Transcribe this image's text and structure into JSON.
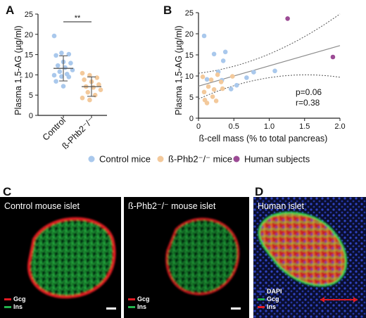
{
  "colors": {
    "control": "#a9c8ec",
    "knockout": "#f3c99b",
    "human": "#9c4b95",
    "axis": "#222222",
    "fit_line": "#8c8c8c",
    "gcg": "#e21b23",
    "ins": "#22b24c",
    "dapi": "#2838a8"
  },
  "panels": {
    "A": {
      "letter": "A"
    },
    "B": {
      "letter": "B"
    },
    "C": {
      "letter": "C",
      "left_title": "Control mouse islet",
      "right_title": "ß-Phb2⁻/⁻ mouse islet",
      "stain_gcg": "Gcg",
      "stain_ins": "Ins"
    },
    "D": {
      "letter": "D",
      "title": "Human islet",
      "stain_dapi": "DAPI",
      "stain_gcg": "Gcg",
      "stain_ins": "Ins"
    }
  },
  "legend": {
    "items": [
      {
        "label": "Control mice",
        "color_key": "control"
      },
      {
        "label": "ß-Phb2⁻/⁻ mice",
        "color_key": "knockout"
      },
      {
        "label": "Human subjects",
        "color_key": "human"
      }
    ]
  },
  "chart_data": [
    {
      "type": "scatter",
      "panel": "A",
      "ylabel": "Plasma 1,5-AG (µg/ml)",
      "ylim": [
        0,
        25
      ],
      "yticks": [
        0,
        5,
        10,
        15,
        20,
        25
      ],
      "categories": [
        "Control",
        "ß-Phb2⁻/⁻"
      ],
      "significance": "**",
      "series": [
        {
          "name": "Control",
          "color_key": "control",
          "mean": 11.6,
          "sd": 3.1,
          "values": [
            19.6,
            15.4,
            15.1,
            14.8,
            13.2,
            12.9,
            12.3,
            11.8,
            11.2,
            10.8,
            10.2,
            9.9,
            9.6,
            9.5,
            8.4,
            7.2
          ]
        },
        {
          "name": "ß-Phb2⁻/⁻",
          "color_key": "knockout",
          "mean": 7.1,
          "sd": 2.4,
          "values": [
            10.4,
            9.9,
            9.3,
            8.8,
            8.3,
            7.6,
            7.1,
            6.9,
            6.3,
            5.7,
            5.0,
            4.3,
            3.8
          ]
        }
      ]
    },
    {
      "type": "scatter",
      "panel": "B",
      "xlabel": "ß-cell mass (% to total pancreas)",
      "ylabel": "Plasma 1,5-AG (µg/ml)",
      "xlim": [
        0,
        2.0
      ],
      "ylim": [
        0,
        25
      ],
      "xticks": [
        "0",
        "0.5",
        "1.0",
        "1.5",
        "2.0"
      ],
      "yticks": [
        0,
        5,
        10,
        15,
        20,
        25
      ],
      "stats": {
        "p": "p=0.06",
        "r": "r=0.38"
      },
      "fit": {
        "x": [
          0,
          2.0
        ],
        "y": [
          7.6,
          17.2
        ]
      },
      "series": [
        {
          "name": "Control mice",
          "color_key": "control",
          "points": [
            [
              0.08,
              19.5
            ],
            [
              0.12,
              9.2
            ],
            [
              0.22,
              15.2
            ],
            [
              0.28,
              11.0
            ],
            [
              0.33,
              9.0
            ],
            [
              0.35,
              13.6
            ],
            [
              0.38,
              15.7
            ],
            [
              0.46,
              6.9
            ],
            [
              0.54,
              7.8
            ],
            [
              0.68,
              9.6
            ],
            [
              0.78,
              10.9
            ],
            [
              1.08,
              11.2
            ]
          ]
        },
        {
          "name": "ß-Phb2⁻/⁻ mice",
          "color_key": "knockout",
          "points": [
            [
              0.06,
              9.8
            ],
            [
              0.08,
              6.2
            ],
            [
              0.09,
              4.3
            ],
            [
              0.12,
              3.6
            ],
            [
              0.14,
              7.5
            ],
            [
              0.18,
              9.1
            ],
            [
              0.2,
              5.1
            ],
            [
              0.22,
              6.8
            ],
            [
              0.25,
              4.1
            ],
            [
              0.27,
              10.3
            ],
            [
              0.32,
              8.6
            ],
            [
              0.34,
              7.0
            ],
            [
              0.48,
              9.9
            ]
          ]
        },
        {
          "name": "Human subjects",
          "color_key": "human",
          "points": [
            [
              1.26,
              23.6
            ],
            [
              1.9,
              14.5
            ]
          ]
        }
      ]
    }
  ]
}
